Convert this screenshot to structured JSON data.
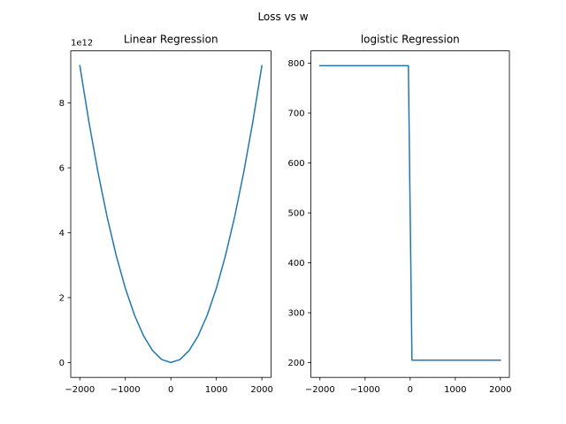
{
  "figure": {
    "suptitle": "Loss vs w"
  },
  "colors": {
    "line": "#1f77b4",
    "axes": "#000000",
    "background": "#ffffff"
  },
  "chart_data": [
    {
      "type": "line",
      "title": "Linear Regression",
      "xlabel": "",
      "ylabel": "",
      "xlim": [
        -2200,
        2200
      ],
      "ylim": [
        -0.4574,
        9.605
      ],
      "y_offset_label": "1e12",
      "xticks": [
        -2000,
        -1000,
        0,
        1000,
        2000
      ],
      "xtick_labels": [
        "−2000",
        "−1000",
        "0",
        "1000",
        "2000"
      ],
      "yticks": [
        0,
        2,
        4,
        6,
        8
      ],
      "ytick_labels": [
        "0",
        "2",
        "4",
        "6",
        "8"
      ],
      "grid": false,
      "series": [
        {
          "x": [
            -2000,
            -1800,
            -1600,
            -1400,
            -1200,
            -1000,
            -800,
            -600,
            -400,
            -200,
            0,
            200,
            400,
            600,
            800,
            1000,
            1200,
            1400,
            1600,
            1800,
            2000
          ],
          "y": [
            9.148,
            7.41,
            5.855,
            4.483,
            3.293,
            2.287,
            1.464,
            0.823,
            0.366,
            0.091,
            0.0,
            0.091,
            0.366,
            0.823,
            1.464,
            2.287,
            3.293,
            4.483,
            5.855,
            7.41,
            9.148
          ]
        }
      ]
    },
    {
      "type": "line",
      "title": " logistic Regression",
      "xlabel": "",
      "ylabel": "",
      "xlim": [
        -2200,
        2200
      ],
      "ylim": [
        170.5,
        824.6
      ],
      "xticks": [
        -2000,
        -1000,
        0,
        1000,
        2000
      ],
      "xtick_labels": [
        "−2000",
        "−1000",
        "0",
        "1000",
        "2000"
      ],
      "yticks": [
        200,
        300,
        400,
        500,
        600,
        700,
        800
      ],
      "ytick_labels": [
        "200",
        "300",
        "400",
        "500",
        "600",
        "700",
        "800"
      ],
      "grid": false,
      "series": [
        {
          "x": [
            -2000,
            -1000,
            -40,
            40,
            1000,
            2000
          ],
          "y": [
            795,
            795,
            795,
            205,
            205,
            205
          ]
        }
      ]
    }
  ]
}
